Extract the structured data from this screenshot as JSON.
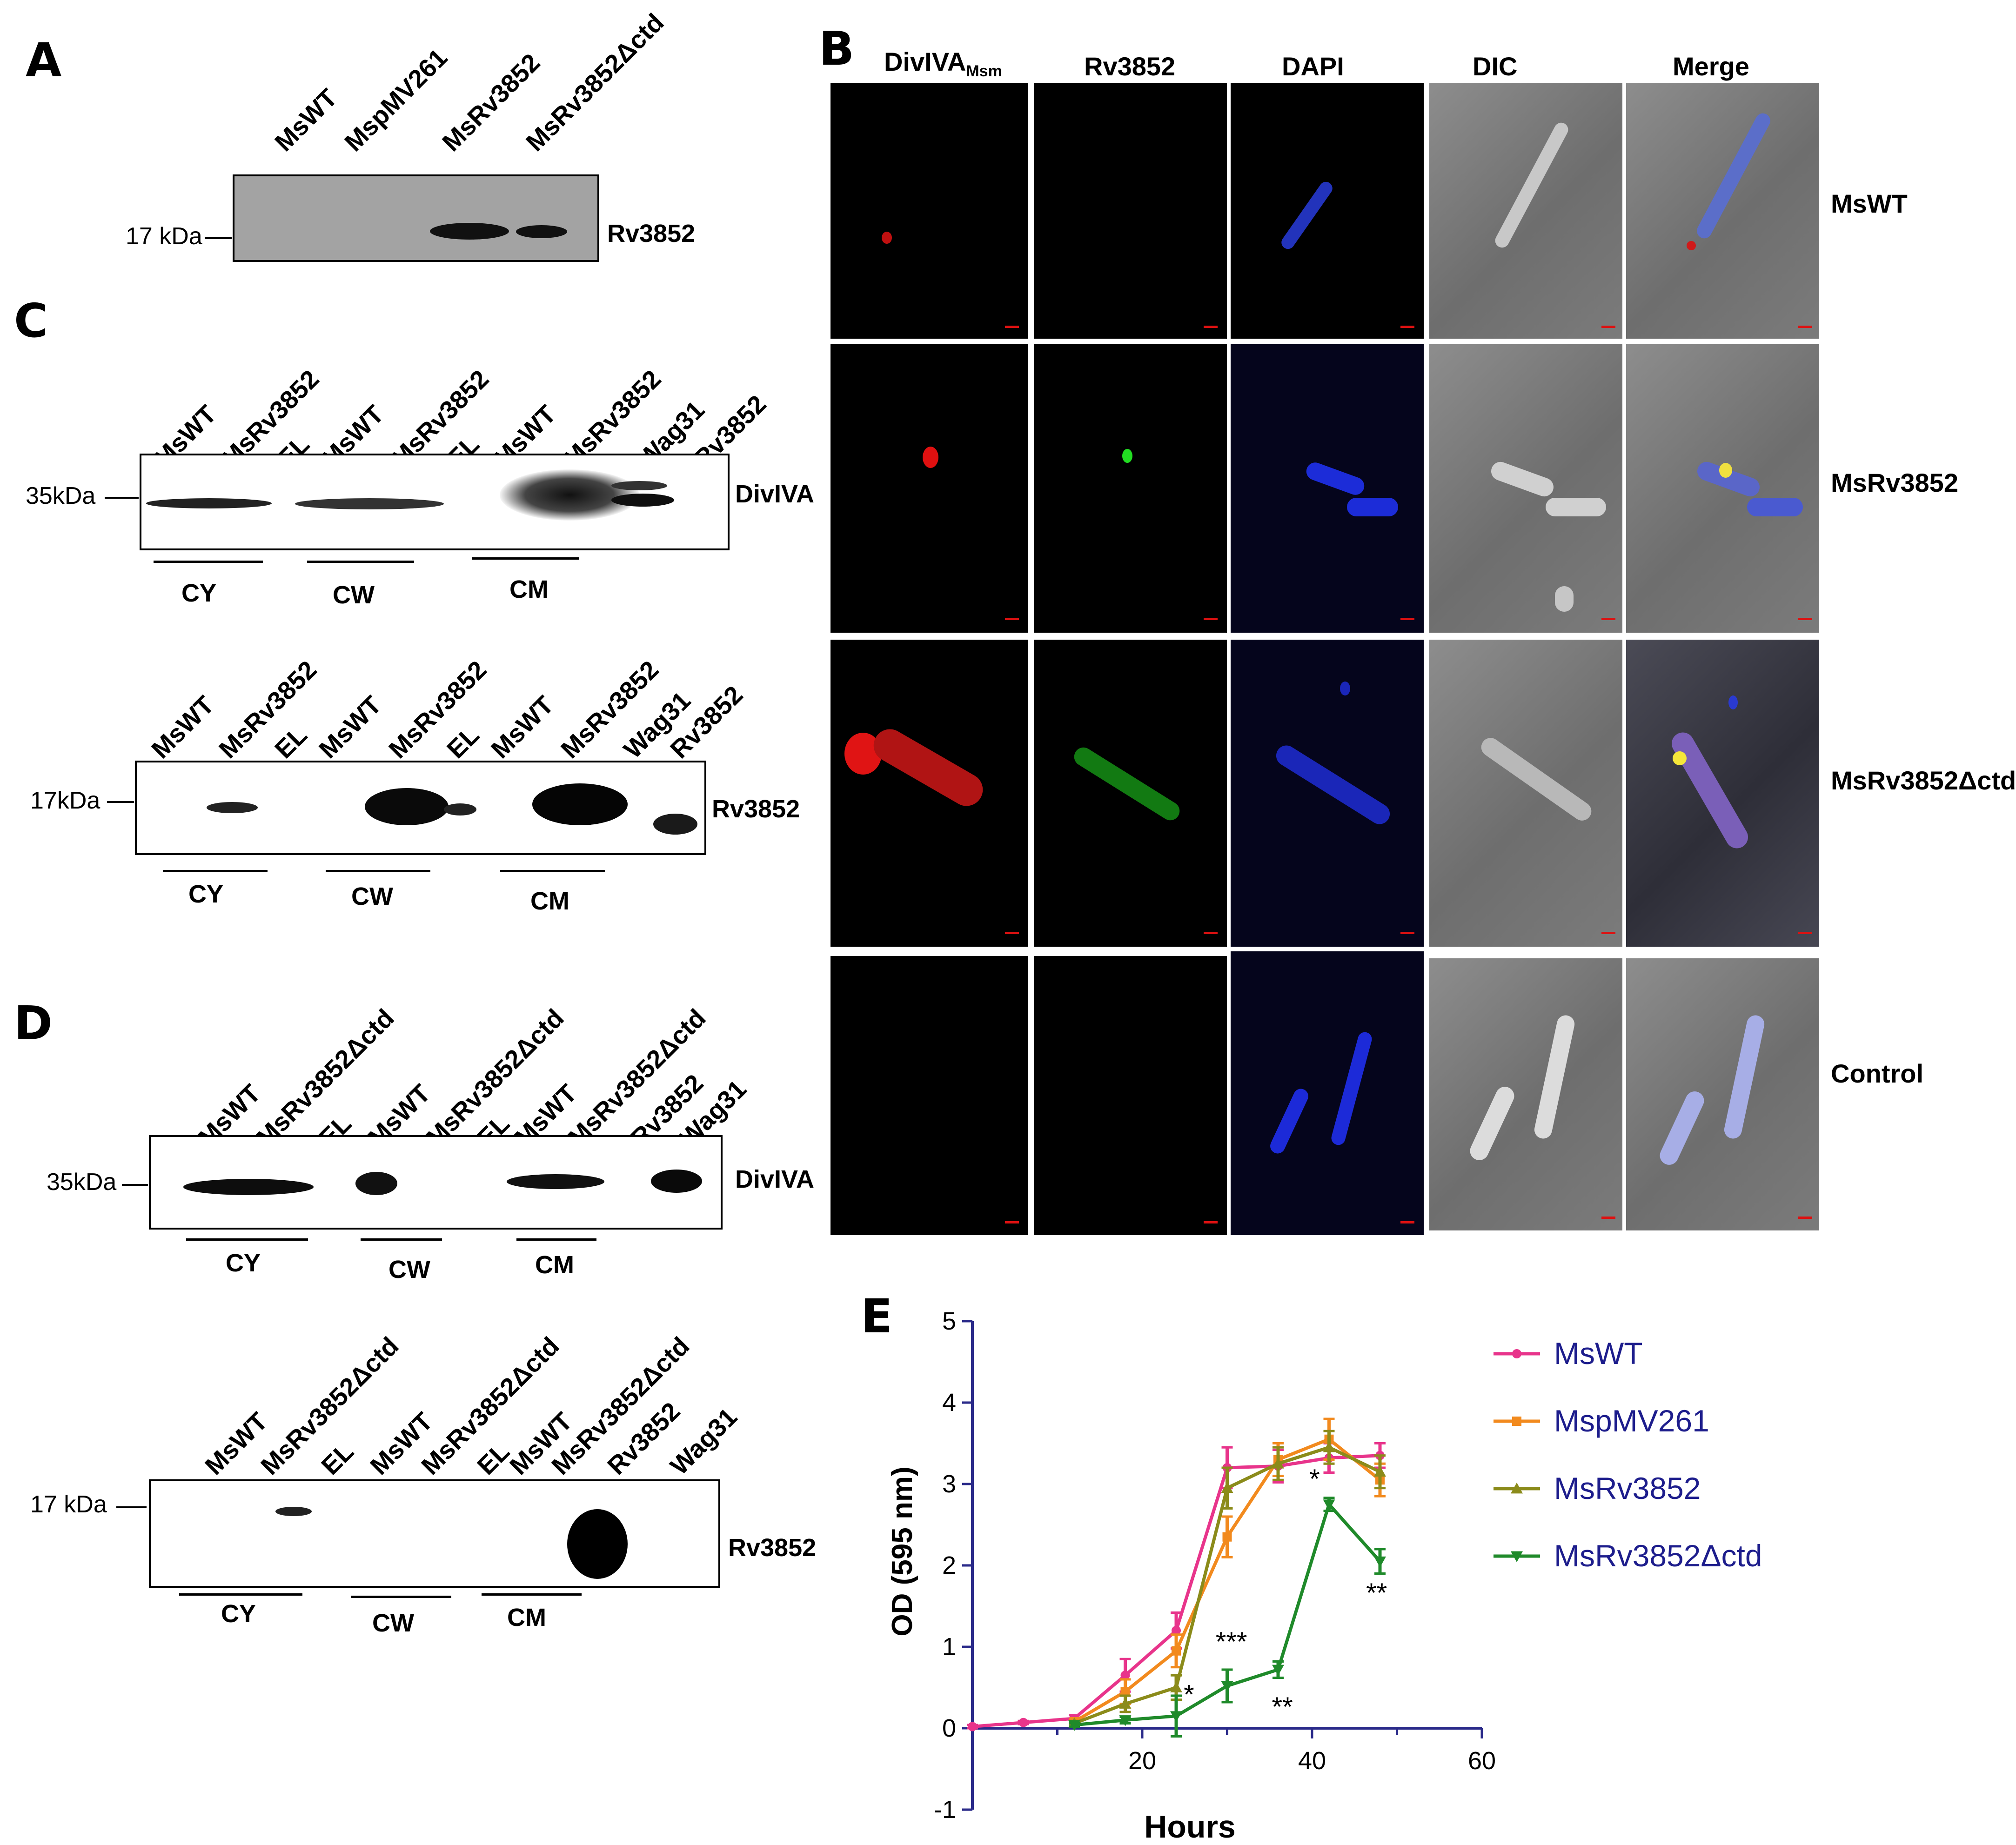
{
  "panels": {
    "a": "A",
    "b": "B",
    "c": "C",
    "d": "D",
    "e": "E"
  },
  "panel_a": {
    "lanes": [
      "MsWT",
      "MspMV261",
      "MsRv3852",
      "MsRv3852Δctd"
    ],
    "marker": "17 kDa",
    "protein": "Rv3852"
  },
  "panel_b": {
    "col_main": "DivIVA",
    "col_sub": "Msm",
    "columns": [
      "Rv3852",
      "DAPI",
      "DIC",
      "Merge"
    ],
    "rows": [
      "MsWT",
      "MsRv3852",
      "MsRv3852Δctd",
      "Control"
    ]
  },
  "panel_c": {
    "top": {
      "lanes": [
        "MsWT",
        "MsRv3852",
        "EL",
        "MsWT",
        "MsRv3852",
        "EL",
        "MsWT",
        "MsRv3852",
        "Wag31",
        "Rv3852"
      ],
      "marker": "35kDa",
      "protein": "DivIVA",
      "fractions": [
        "CY",
        "CW",
        "CM"
      ]
    },
    "bottom": {
      "lanes": [
        "MsWT",
        "MsRv3852",
        "EL",
        "MsWT",
        "MsRv3852",
        "EL",
        "MsWT",
        "MsRv3852",
        "Wag31",
        "Rv3852"
      ],
      "marker": "17kDa",
      "protein": "Rv3852",
      "fractions": [
        "CY",
        "CW",
        "CM"
      ]
    }
  },
  "panel_d": {
    "top": {
      "lanes": [
        "MsWT",
        "MsRv3852Δctd",
        "EL",
        "MsWT",
        "MsRv3852Δctd",
        "EL",
        "MsWT",
        "MsRv3852Δctd",
        "Rv3852",
        "Wag31"
      ],
      "marker": "35kDa",
      "protein": "DivIVA",
      "fractions": [
        "CY",
        "CW",
        "CM"
      ]
    },
    "bottom": {
      "lanes": [
        "MsWT",
        "MsRv3852Δctd",
        "EL",
        "MsWT",
        "MsRv3852Δctd",
        "EL",
        "MsWT",
        "MsRv3852Δctd",
        "Rv3852",
        "Wag31"
      ],
      "marker": "17 kDa",
      "protein": "Rv3852",
      "fractions": [
        "CY",
        "CW",
        "CM"
      ]
    }
  },
  "chart_data": {
    "type": "line",
    "xlabel": "Hours",
    "ylabel": "OD (595 nm)",
    "xlim": [
      0,
      60
    ],
    "ylim": [
      -1,
      5
    ],
    "xticks": [
      20,
      40,
      60
    ],
    "yticks": [
      -1,
      0,
      1,
      2,
      3,
      4,
      5
    ],
    "legend_position": "right",
    "series": [
      {
        "name": "MsWT",
        "color": "#e8348b",
        "marker": "circle",
        "x": [
          0,
          6,
          12,
          18,
          24,
          30,
          36,
          42,
          48
        ],
        "y": [
          0.02,
          0.07,
          0.12,
          0.65,
          1.2,
          3.2,
          3.22,
          3.32,
          3.35
        ],
        "err": [
          0.02,
          0.02,
          0.04,
          0.2,
          0.22,
          0.25,
          0.2,
          0.18,
          0.15
        ]
      },
      {
        "name": "MspMV261",
        "color": "#f28a1e",
        "marker": "square",
        "x": [
          12,
          18,
          24,
          30,
          36,
          42,
          48
        ],
        "y": [
          0.08,
          0.45,
          0.95,
          2.35,
          3.3,
          3.55,
          3.05
        ],
        "err": [
          0.03,
          0.15,
          0.2,
          0.25,
          0.2,
          0.25,
          0.2
        ]
      },
      {
        "name": "MsRv3852",
        "color": "#8b8b1a",
        "marker": "triangle",
        "x": [
          12,
          18,
          24,
          30,
          36,
          42,
          48
        ],
        "y": [
          0.06,
          0.3,
          0.5,
          2.95,
          3.25,
          3.45,
          3.15
        ],
        "err": [
          0.03,
          0.1,
          0.15,
          0.25,
          0.2,
          0.2,
          0.2
        ]
      },
      {
        "name": "MsRv3852Δctd",
        "color": "#1f8a2a",
        "marker": "down-triangle",
        "x": [
          12,
          18,
          24,
          30,
          36,
          42,
          48
        ],
        "y": [
          0.04,
          0.1,
          0.15,
          0.52,
          0.72,
          2.75,
          2.05
        ],
        "err": [
          0.02,
          0.04,
          0.25,
          0.2,
          0.1,
          0.08,
          0.15
        ]
      }
    ],
    "annotations": [
      {
        "text": "*",
        "x": 25.5,
        "y": 0.3
      },
      {
        "text": "***",
        "x": 30.5,
        "y": 0.95
      },
      {
        "text": "**",
        "x": 36.5,
        "y": 0.15
      },
      {
        "text": "*",
        "x": 40.3,
        "y": 2.95
      },
      {
        "text": "**",
        "x": 47.6,
        "y": 1.55
      }
    ]
  }
}
